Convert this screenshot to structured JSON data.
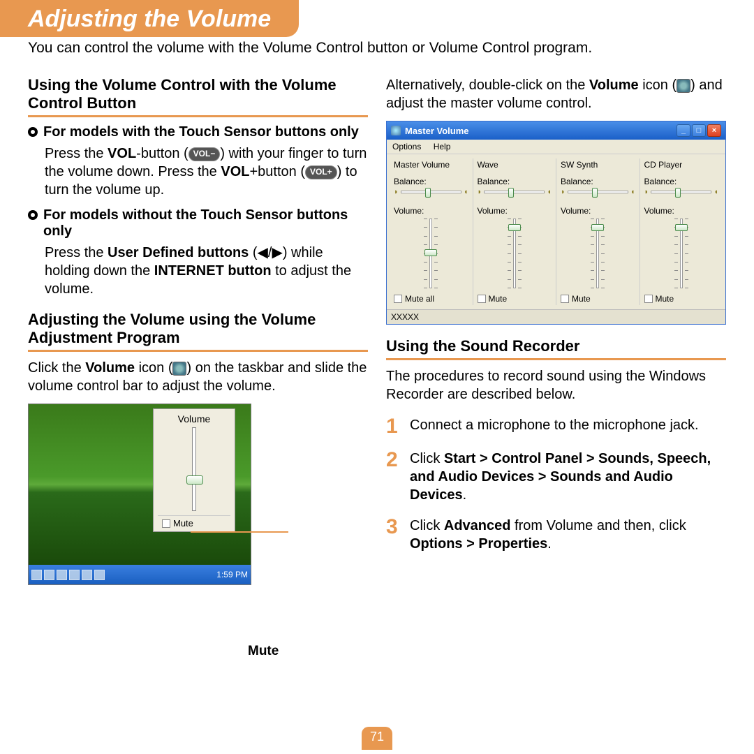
{
  "page": {
    "title": "Adjusting the Volume",
    "intro": "You can control the volume with the Volume Control button or Volume Control program.",
    "number": "71"
  },
  "left": {
    "h1": "Using the Volume Control with the Volume Control Button",
    "b1_title": "For models with the Touch Sensor buttons only",
    "b1_p_a": "Press the ",
    "b1_vol": "VOL",
    "b1_p_b": "-button (",
    "b1_btn_minus": "VOL−",
    "b1_p_c": ") with your finger to turn the volume down. Press the ",
    "b1_vol2": "VOL",
    "b1_p_d": "+button (",
    "b1_btn_plus": "VOL+",
    "b1_p_e": ") to turn the volume up.",
    "b2_title": "For models without the Touch Sensor buttons only",
    "b2_p_a": "Press the ",
    "b2_udb": "User Defined buttons",
    "b2_p_b": " (",
    "b2_tri": "◀/▶",
    "b2_p_c": ") while holding down the ",
    "b2_ib": "INTERNET button",
    "b2_p_d": " to adjust the volume.",
    "h2": "Adjusting the Volume using the Volume Adjustment Program",
    "p2_a": "Click the ",
    "p2_vol": "Volume",
    "p2_b": " icon (",
    "p2_c": ") on the taskbar and slide the volume control bar to adjust the volume.",
    "popup": {
      "title": "Volume",
      "mute": "Mute",
      "time": "1:59 PM"
    },
    "mute_callout": "Mute"
  },
  "right": {
    "p1_a": "Alternatively, double-click on the ",
    "p1_vol": "Volume",
    "p1_b": " icon (",
    "p1_c": ") and adjust the master volume control.",
    "mv": {
      "title": "Master Volume",
      "menu_options": "Options",
      "menu_help": "Help",
      "cols": [
        {
          "name": "Master Volume",
          "mute": "Mute all",
          "thumbTop": 44
        },
        {
          "name": "Wave",
          "mute": "Mute",
          "thumbTop": 8
        },
        {
          "name": "SW Synth",
          "mute": "Mute",
          "thumbTop": 8
        },
        {
          "name": "CD Player",
          "mute": "Mute",
          "thumbTop": 8
        }
      ],
      "balance": "Balance:",
      "volume": "Volume:",
      "status": "XXXXX"
    },
    "h3": "Using the Sound Recorder",
    "p3": "The procedures to record sound using the Windows Recorder are described below.",
    "steps": [
      {
        "n": "1",
        "html": "Connect a microphone to the microphone jack."
      },
      {
        "n": "2",
        "html": "Click <b>Start > Control Panel > Sounds, Speech, and Audio Devices > Sounds and Audio Devices</b>."
      },
      {
        "n": "3",
        "html": "Click <b>Advanced</b> from Volume and then, click <b>Options > Properties</b>."
      }
    ]
  }
}
